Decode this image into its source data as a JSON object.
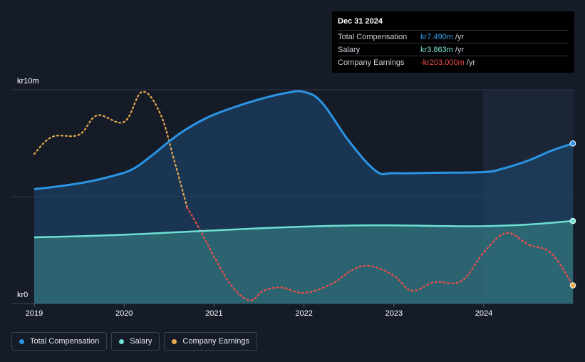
{
  "tooltip": {
    "date": "Dec 31 2024",
    "rows": [
      {
        "label": "Total Compensation",
        "value": "kr7.490m",
        "unit": "/yr",
        "color": "#3b9ee8"
      },
      {
        "label": "Salary",
        "value": "kr3.863m",
        "unit": "/yr",
        "color": "#7ee8d8"
      },
      {
        "label": "Company Earnings",
        "value": "-kr203.000m",
        "unit": "/yr",
        "color": "#ef4b4b"
      }
    ]
  },
  "legend": [
    {
      "label": "Total Compensation",
      "color": "#2b94e5"
    },
    {
      "label": "Salary",
      "color": "#6de0d2"
    },
    {
      "label": "Company Earnings",
      "color": "#e8aa4e"
    }
  ],
  "chart_data": {
    "type": "line",
    "y_top_label": "kr10m",
    "y_bottom_label": "kr0",
    "ylim": [
      0,
      10
    ],
    "xlim": [
      2019.0,
      2024.99
    ],
    "x_ticks": [
      "2019",
      "2020",
      "2021",
      "2022",
      "2023",
      "2024"
    ],
    "series": [
      {
        "name": "Total Compensation",
        "color": "#2b94e5",
        "style": "solid-area",
        "x": [
          2019.0,
          2019.3,
          2019.6,
          2019.9,
          2020.1,
          2020.3,
          2020.6,
          2020.9,
          2021.2,
          2021.5,
          2021.8,
          2022.0,
          2022.2,
          2022.5,
          2022.8,
          2023.0,
          2023.5,
          2024.0,
          2024.2,
          2024.5,
          2024.75,
          2024.99
        ],
        "y": [
          5.35,
          5.5,
          5.7,
          6.0,
          6.3,
          6.9,
          7.9,
          8.65,
          9.15,
          9.55,
          9.85,
          9.9,
          9.4,
          7.6,
          6.2,
          6.1,
          6.12,
          6.15,
          6.3,
          6.7,
          7.15,
          7.49
        ]
      },
      {
        "name": "Salary",
        "color": "#6de0d2",
        "style": "solid-area",
        "x": [
          2019.0,
          2019.5,
          2020.0,
          2020.5,
          2021.0,
          2021.5,
          2022.0,
          2022.5,
          2023.0,
          2023.5,
          2024.0,
          2024.5,
          2024.99
        ],
        "y": [
          3.1,
          3.15,
          3.22,
          3.32,
          3.42,
          3.52,
          3.6,
          3.65,
          3.66,
          3.63,
          3.62,
          3.7,
          3.863
        ]
      },
      {
        "name": "Company Earnings",
        "color": "#e8aa4e",
        "negative_color": "#ef4b4b",
        "style": "dotted",
        "note": "plotted on an independent scale; positive values drawn in amber, negative in red",
        "x": [
          2019.0,
          2019.2,
          2019.5,
          2019.7,
          2020.0,
          2020.2,
          2020.4,
          2020.55,
          2020.7,
          2020.85,
          2021.0,
          2021.2,
          2021.4,
          2021.55,
          2021.75,
          2022.0,
          2022.3,
          2022.55,
          2022.75,
          2023.0,
          2023.2,
          2023.45,
          2023.75,
          2024.0,
          2024.25,
          2024.5,
          2024.75,
          2024.99
        ],
        "y": [
          7.0,
          7.8,
          7.9,
          8.8,
          8.5,
          9.9,
          8.9,
          6.8,
          4.5,
          3.4,
          2.2,
          0.8,
          0.15,
          0.6,
          0.75,
          0.5,
          0.9,
          1.6,
          1.75,
          1.3,
          0.6,
          1.0,
          1.05,
          2.4,
          3.3,
          2.75,
          2.35,
          0.85
        ]
      }
    ]
  }
}
